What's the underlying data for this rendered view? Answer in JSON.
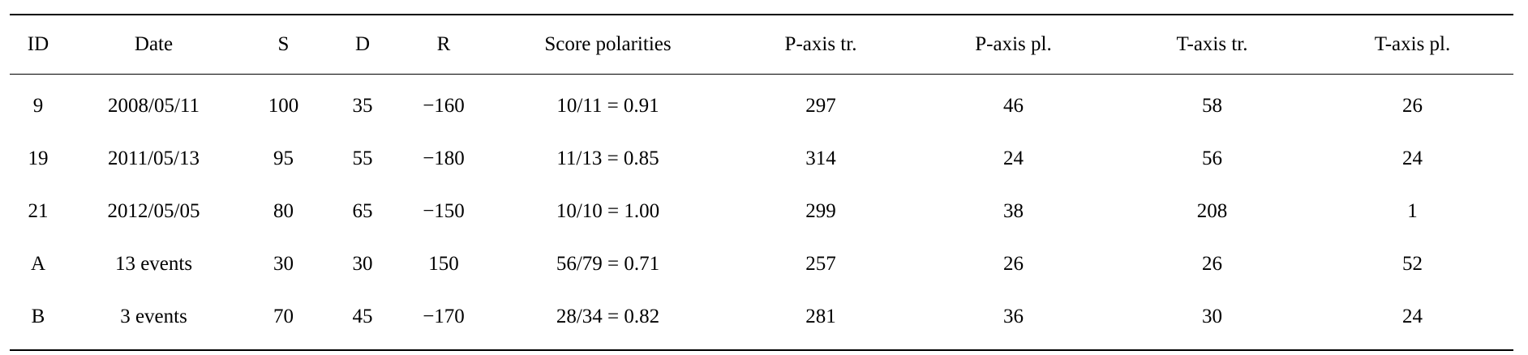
{
  "table": {
    "columns": [
      "ID",
      "Date",
      "S",
      "D",
      "R",
      "Score polarities",
      "P-axis tr.",
      "P-axis pl.",
      "T-axis tr.",
      "T-axis pl."
    ],
    "rows": [
      [
        "9",
        "2008/05/11",
        "100",
        "35",
        "−160",
        "10/11 = 0.91",
        "297",
        "46",
        "58",
        "26"
      ],
      [
        "19",
        "2011/05/13",
        "95",
        "55",
        "−180",
        "11/13 = 0.85",
        "314",
        "24",
        "56",
        "24"
      ],
      [
        "21",
        "2012/05/05",
        "80",
        "65",
        "−150",
        "10/10 = 1.00",
        "299",
        "38",
        "208",
        "1"
      ],
      [
        "A",
        "13 events",
        "30",
        "30",
        "150",
        "56/79 = 0.71",
        "257",
        "26",
        "26",
        "52"
      ],
      [
        "B",
        "3 events",
        "70",
        "45",
        "−170",
        "28/34 = 0.82",
        "281",
        "36",
        "30",
        "24"
      ]
    ]
  }
}
